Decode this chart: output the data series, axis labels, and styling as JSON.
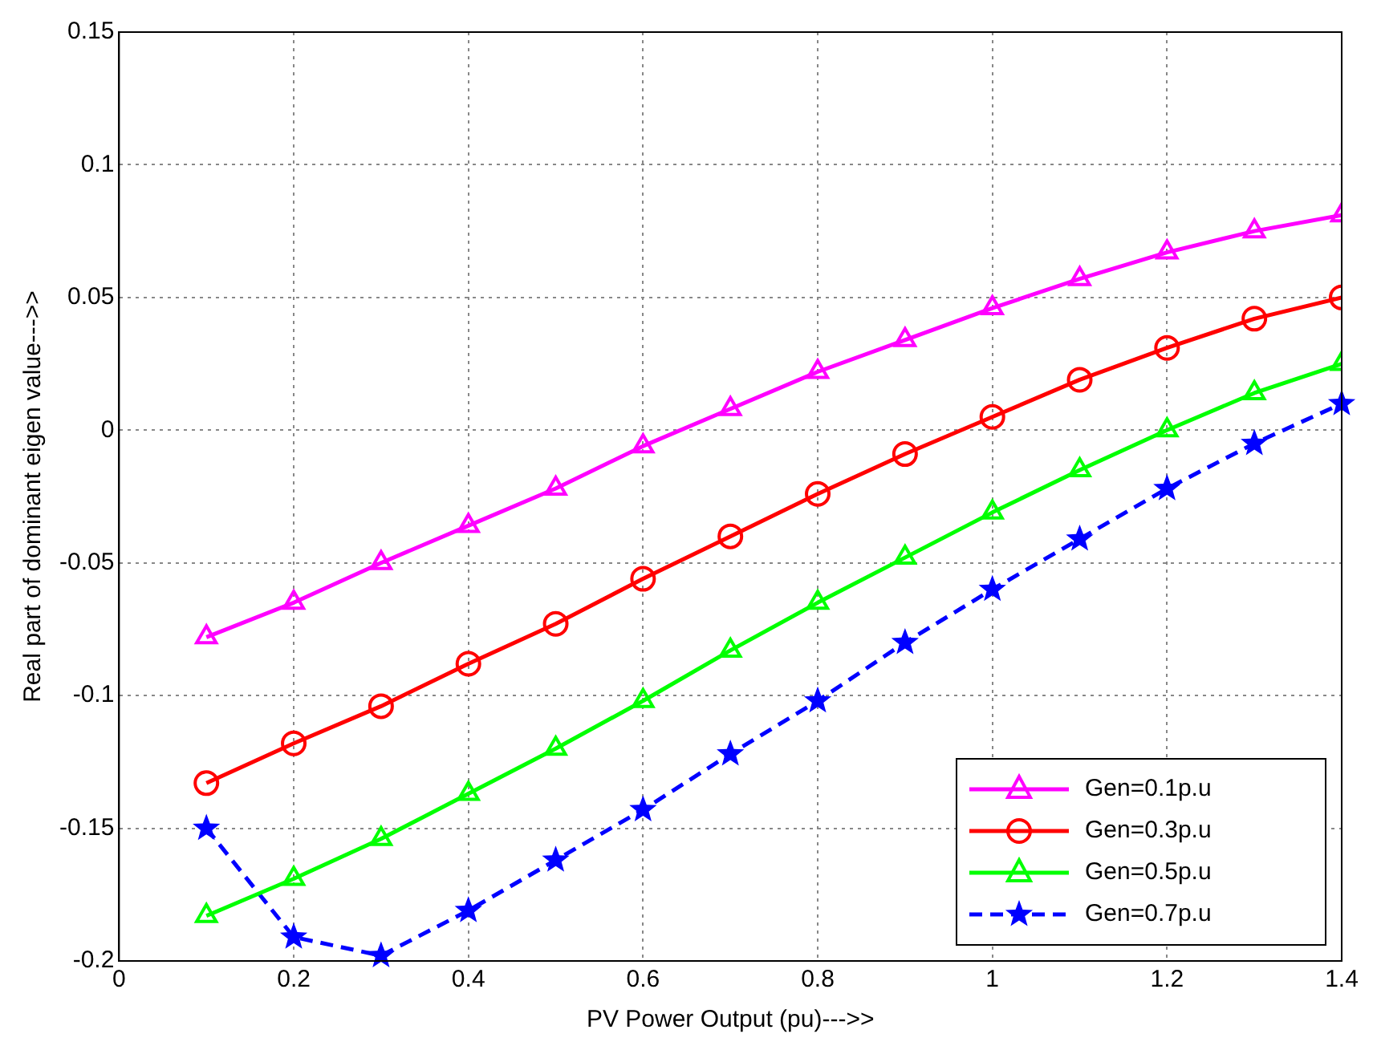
{
  "chart_data": {
    "type": "line",
    "xlabel": "PV Power Output (pu)--->>",
    "ylabel": "Real part of dominant eigen value--->>",
    "x": [
      0.1,
      0.2,
      0.3,
      0.4,
      0.5,
      0.6,
      0.7,
      0.8,
      0.9,
      1.0,
      1.1,
      1.2,
      1.3,
      1.4
    ],
    "series": [
      {
        "name": "Gen=0.1p.u",
        "color": "#ff00ff",
        "marker": "triangle",
        "line_style": "solid",
        "values": [
          -0.078,
          -0.065,
          -0.05,
          -0.036,
          -0.022,
          -0.006,
          0.008,
          0.022,
          0.034,
          0.046,
          0.057,
          0.067,
          0.075,
          0.081
        ]
      },
      {
        "name": "Gen=0.3p.u",
        "color": "#ff0000",
        "marker": "circle",
        "line_style": "solid",
        "values": [
          -0.133,
          -0.118,
          -0.104,
          -0.088,
          -0.073,
          -0.056,
          -0.04,
          -0.024,
          -0.009,
          0.005,
          0.019,
          0.031,
          0.042,
          0.05
        ]
      },
      {
        "name": "Gen=0.5p.u",
        "color": "#00ff00",
        "marker": "triangle",
        "line_style": "solid",
        "values": [
          -0.183,
          -0.169,
          -0.154,
          -0.137,
          -0.12,
          -0.102,
          -0.083,
          -0.065,
          -0.048,
          -0.031,
          -0.015,
          0.0,
          0.014,
          0.025
        ]
      },
      {
        "name": "Gen=0.7p.u",
        "color": "#0000ff",
        "marker": "star",
        "line_style": "dashed",
        "values": [
          -0.15,
          -0.191,
          -0.198,
          -0.181,
          -0.162,
          -0.143,
          -0.122,
          -0.102,
          -0.08,
          -0.06,
          -0.041,
          -0.022,
          -0.005,
          0.01
        ]
      }
    ],
    "xlim": [
      0,
      1.4
    ],
    "xticks": [
      0,
      0.2,
      0.4,
      0.6,
      0.8,
      1,
      1.2,
      1.4
    ],
    "ylim": [
      -0.2,
      0.15
    ],
    "yticks": [
      -0.2,
      -0.15,
      -0.1,
      -0.05,
      0,
      0.05,
      0.1,
      0.15
    ],
    "grid": true,
    "legend": "bottom right"
  }
}
